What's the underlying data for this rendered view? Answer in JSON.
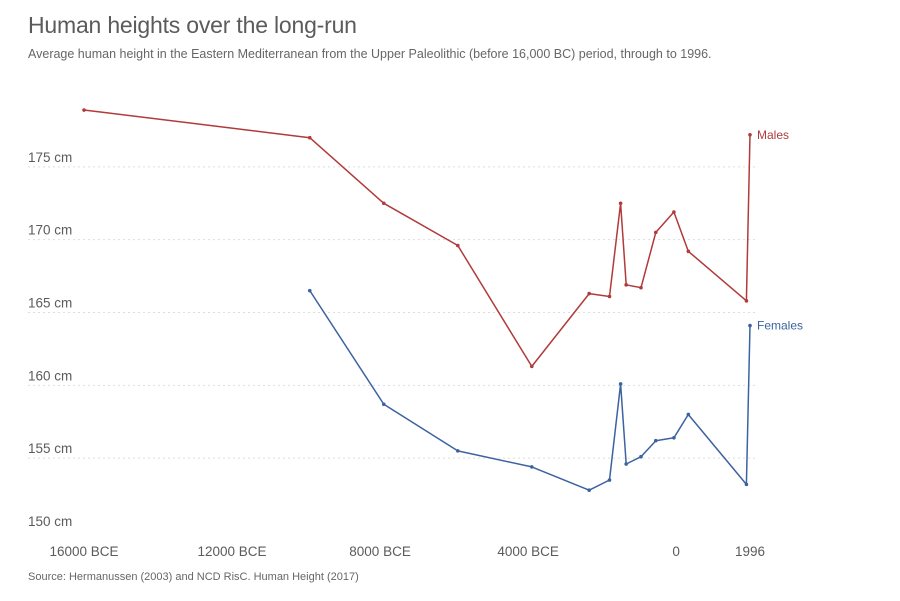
{
  "title": "Human heights over the long-run",
  "subtitle": "Average human height in the Eastern Mediterranean from the Upper Paleolithic (before 16,000 BC) period, through to 1996.",
  "source": "Source: Hermanussen (2003) and NCD RisC. Human Height (2017)",
  "chart_data": {
    "type": "line",
    "title": "Human heights over the long-run",
    "subtitle": "Average human height in the Eastern Mediterranean from the Upper Paleolithic (before 16,000 BC) period, through to 1996.",
    "xlabel": "",
    "ylabel": "",
    "xlim": [
      -16000,
      1996
    ],
    "ylim": [
      150,
      180
    ],
    "grid": "horizontal dotted",
    "legend": "inline labels at line ends (right)",
    "y_ticks": [
      {
        "value": 150,
        "label": "150 cm"
      },
      {
        "value": 155,
        "label": "155 cm"
      },
      {
        "value": 160,
        "label": "160 cm"
      },
      {
        "value": 165,
        "label": "165 cm"
      },
      {
        "value": 170,
        "label": "170 cm"
      },
      {
        "value": 175,
        "label": "175 cm"
      }
    ],
    "x_ticks": [
      {
        "value": -16000,
        "label": "16000 BCE"
      },
      {
        "value": -12000,
        "label": "12000 BCE"
      },
      {
        "value": -8000,
        "label": "8000 BCE"
      },
      {
        "value": -4000,
        "label": "4000 BCE"
      },
      {
        "value": 0,
        "label": "0"
      },
      {
        "value": 1996,
        "label": "1996"
      }
    ],
    "series": [
      {
        "name": "Males",
        "color": "#b13a3a",
        "points": [
          {
            "x": -16000,
            "y": 178.9
          },
          {
            "x": -9900,
            "y": 177.0
          },
          {
            "x": -7900,
            "y": 172.5
          },
          {
            "x": -5900,
            "y": 169.6
          },
          {
            "x": -3900,
            "y": 161.3
          },
          {
            "x": -2350,
            "y": 166.3
          },
          {
            "x": -1800,
            "y": 166.1
          },
          {
            "x": -1500,
            "y": 172.5
          },
          {
            "x": -1350,
            "y": 166.9
          },
          {
            "x": -950,
            "y": 166.7
          },
          {
            "x": -550,
            "y": 170.5
          },
          {
            "x": -60,
            "y": 171.9
          },
          {
            "x": 330,
            "y": 169.2
          },
          {
            "x": 1900,
            "y": 165.8
          },
          {
            "x": 1996,
            "y": 177.2
          }
        ]
      },
      {
        "name": "Females",
        "color": "#3c62a0",
        "points": [
          {
            "x": -9900,
            "y": 166.5
          },
          {
            "x": -7900,
            "y": 158.7
          },
          {
            "x": -5900,
            "y": 155.5
          },
          {
            "x": -3900,
            "y": 154.4
          },
          {
            "x": -2350,
            "y": 152.8
          },
          {
            "x": -1800,
            "y": 153.5
          },
          {
            "x": -1500,
            "y": 160.1
          },
          {
            "x": -1350,
            "y": 154.6
          },
          {
            "x": -950,
            "y": 155.1
          },
          {
            "x": -550,
            "y": 156.2
          },
          {
            "x": -60,
            "y": 156.4
          },
          {
            "x": 330,
            "y": 158.0
          },
          {
            "x": 1900,
            "y": 153.2
          },
          {
            "x": 1996,
            "y": 164.1
          }
        ]
      }
    ]
  }
}
